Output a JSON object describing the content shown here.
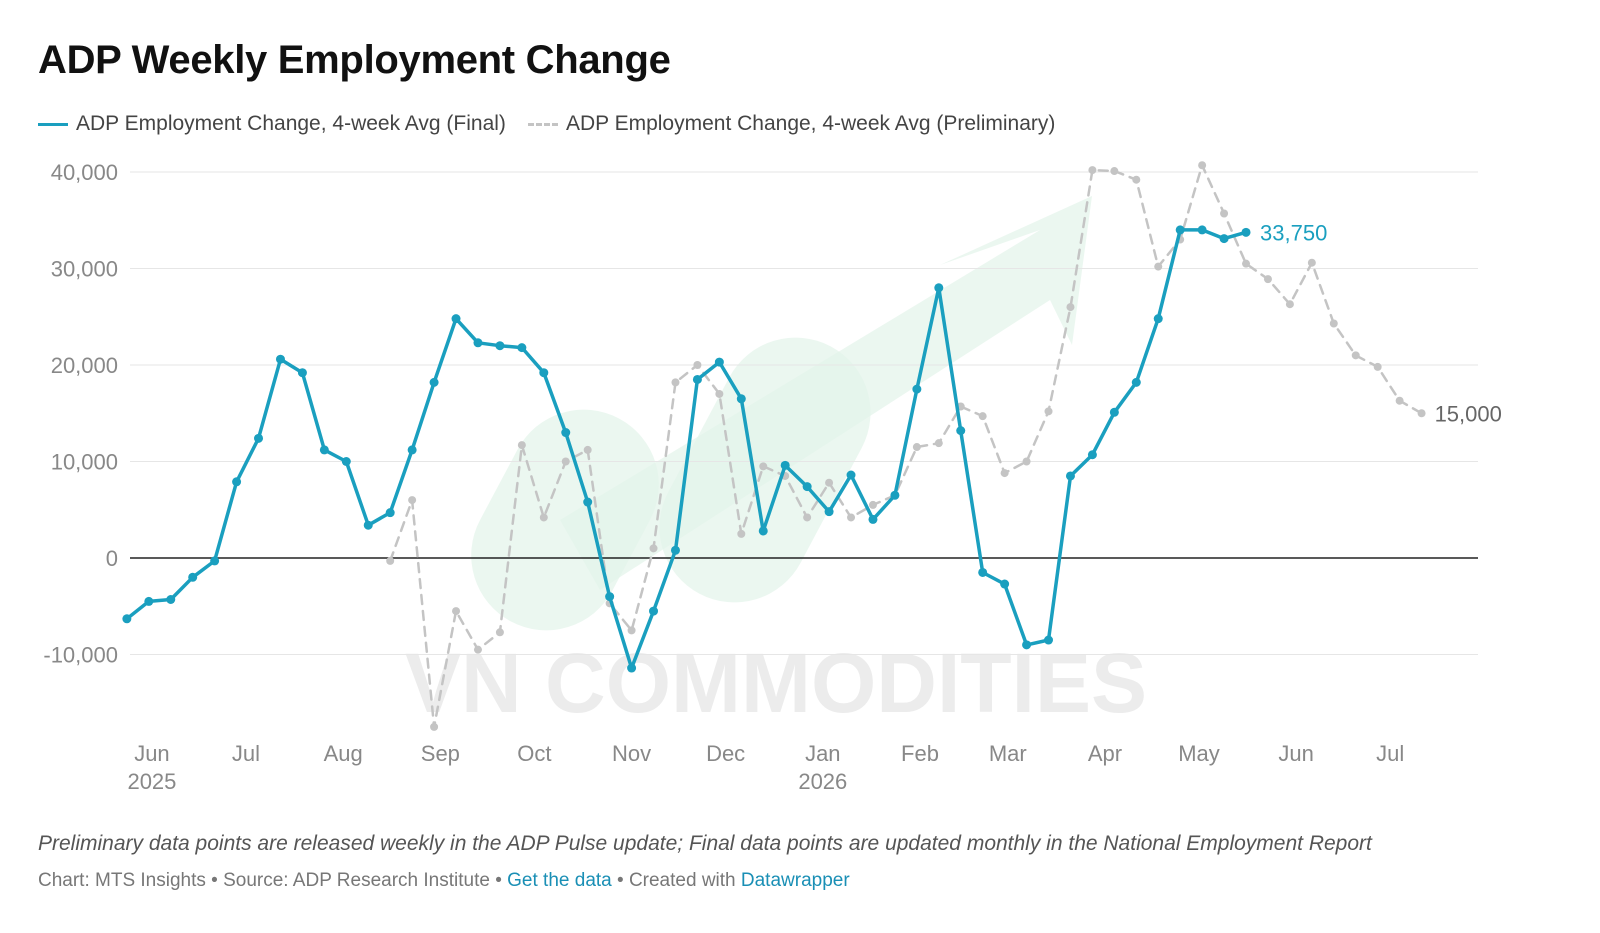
{
  "title": "ADP Weekly Employment Change",
  "legend": {
    "final": "ADP Employment Change, 4-week Avg (Final)",
    "prelim": "ADP Employment Change, 4-week Avg (Preliminary)"
  },
  "footnote": "Preliminary data points are released weekly in the ADP Pulse update; Final data points are updated monthly in the National Employment Report",
  "credits": {
    "prefix": "Chart: MTS Insights • Source: ADP Research Institute • ",
    "get_data": "Get the data",
    "middle": " • Created with ",
    "datawrapper": "Datawrapper"
  },
  "watermark": "VN COMMODITIES",
  "colors": {
    "final": "#1a9fbf",
    "prelim": "#c4c4c4",
    "grid": "#e6e6e6",
    "zero": "#222222",
    "watermark_arrow": "#e3f4ea"
  },
  "chart_data": {
    "type": "line",
    "title": "ADP Weekly Employment Change",
    "ylim": [
      -18000,
      40000
    ],
    "yticks": [
      40000,
      30000,
      20000,
      10000,
      0,
      -10000
    ],
    "ytick_labels": [
      "40,000",
      "30,000",
      "20,000",
      "10,000",
      "0",
      "-10,000"
    ],
    "x_range": [
      "2025-05-25",
      "2026-07-29"
    ],
    "xticks": [
      {
        "date": "2025-06-01",
        "label": "Jun",
        "year": "2025"
      },
      {
        "date": "2025-07-01",
        "label": "Jul",
        "year": ""
      },
      {
        "date": "2025-08-01",
        "label": "Aug",
        "year": ""
      },
      {
        "date": "2025-09-01",
        "label": "Sep",
        "year": ""
      },
      {
        "date": "2025-10-01",
        "label": "Oct",
        "year": ""
      },
      {
        "date": "2025-11-01",
        "label": "Nov",
        "year": ""
      },
      {
        "date": "2025-12-01",
        "label": "Dec",
        "year": ""
      },
      {
        "date": "2026-01-01",
        "label": "Jan",
        "year": "2026"
      },
      {
        "date": "2026-02-01",
        "label": "Feb",
        "year": ""
      },
      {
        "date": "2026-03-01",
        "label": "Mar",
        "year": ""
      },
      {
        "date": "2026-04-01",
        "label": "Apr",
        "year": ""
      },
      {
        "date": "2026-05-01",
        "label": "May",
        "year": ""
      },
      {
        "date": "2026-06-01",
        "label": "Jun",
        "year": ""
      },
      {
        "date": "2026-07-01",
        "label": "Jul",
        "year": ""
      }
    ],
    "grid": true,
    "legend_position": "top-left",
    "series": [
      {
        "name": "ADP Employment Change, 4-week Avg (Final)",
        "style": "solid",
        "end_label": "33,750",
        "points": [
          {
            "x": "2025-05-24",
            "y": -6300
          },
          {
            "x": "2025-05-31",
            "y": -4500
          },
          {
            "x": "2025-06-07",
            "y": -4300
          },
          {
            "x": "2025-06-14",
            "y": -2000
          },
          {
            "x": "2025-06-21",
            "y": -300
          },
          {
            "x": "2025-06-28",
            "y": 7900
          },
          {
            "x": "2025-07-05",
            "y": 12400
          },
          {
            "x": "2025-07-12",
            "y": 20600
          },
          {
            "x": "2025-07-19",
            "y": 19200
          },
          {
            "x": "2025-07-26",
            "y": 11200
          },
          {
            "x": "2025-08-02",
            "y": 10000
          },
          {
            "x": "2025-08-09",
            "y": 3400
          },
          {
            "x": "2025-08-16",
            "y": 4700
          },
          {
            "x": "2025-08-23",
            "y": 11200
          },
          {
            "x": "2025-08-30",
            "y": 18200
          },
          {
            "x": "2025-09-06",
            "y": 24800
          },
          {
            "x": "2025-09-13",
            "y": 22300
          },
          {
            "x": "2025-09-20",
            "y": 22000
          },
          {
            "x": "2025-09-27",
            "y": 21800
          },
          {
            "x": "2025-10-04",
            "y": 19200
          },
          {
            "x": "2025-10-11",
            "y": 13000
          },
          {
            "x": "2025-10-18",
            "y": 5800
          },
          {
            "x": "2025-10-25",
            "y": -4000
          },
          {
            "x": "2025-11-01",
            "y": -11400
          },
          {
            "x": "2025-11-08",
            "y": -5500
          },
          {
            "x": "2025-11-15",
            "y": 800
          },
          {
            "x": "2025-11-22",
            "y": 18500
          },
          {
            "x": "2025-11-29",
            "y": 20300
          },
          {
            "x": "2025-12-06",
            "y": 16500
          },
          {
            "x": "2025-12-13",
            "y": 2800
          },
          {
            "x": "2025-12-20",
            "y": 9600
          },
          {
            "x": "2025-12-27",
            "y": 7400
          },
          {
            "x": "2026-01-03",
            "y": 4800
          },
          {
            "x": "2026-01-10",
            "y": 8600
          },
          {
            "x": "2026-01-17",
            "y": 4000
          },
          {
            "x": "2026-01-24",
            "y": 6500
          },
          {
            "x": "2026-01-31",
            "y": 17500
          },
          {
            "x": "2026-02-07",
            "y": 28000
          },
          {
            "x": "2026-02-14",
            "y": 13200
          },
          {
            "x": "2026-02-21",
            "y": -1500
          },
          {
            "x": "2026-02-28",
            "y": -2700
          },
          {
            "x": "2026-03-07",
            "y": -9000
          },
          {
            "x": "2026-03-14",
            "y": -8500
          },
          {
            "x": "2026-03-21",
            "y": 8500
          },
          {
            "x": "2026-03-28",
            "y": 10700
          },
          {
            "x": "2026-04-04",
            "y": 15100
          },
          {
            "x": "2026-04-11",
            "y": 18200
          },
          {
            "x": "2026-04-18",
            "y": 24800
          },
          {
            "x": "2026-04-25",
            "y": 34000
          },
          {
            "x": "2026-05-02",
            "y": 34000
          },
          {
            "x": "2026-05-09",
            "y": 33100
          },
          {
            "x": "2026-05-16",
            "y": 33750
          }
        ]
      },
      {
        "name": "ADP Employment Change, 4-week Avg (Preliminary)",
        "style": "dashed",
        "end_label": "15,000",
        "points": [
          {
            "x": "2025-08-16",
            "y": -300
          },
          {
            "x": "2025-08-23",
            "y": 6000
          },
          {
            "x": "2025-08-30",
            "y": -17500
          },
          {
            "x": "2025-09-06",
            "y": -5500
          },
          {
            "x": "2025-09-13",
            "y": -9500
          },
          {
            "x": "2025-09-20",
            "y": -7700
          },
          {
            "x": "2025-09-27",
            "y": 11700
          },
          {
            "x": "2025-10-04",
            "y": 4200
          },
          {
            "x": "2025-10-11",
            "y": 10000
          },
          {
            "x": "2025-10-18",
            "y": 11200
          },
          {
            "x": "2025-10-25",
            "y": -4700
          },
          {
            "x": "2025-11-01",
            "y": -7500
          },
          {
            "x": "2025-11-08",
            "y": 1000
          },
          {
            "x": "2025-11-15",
            "y": 18200
          },
          {
            "x": "2025-11-22",
            "y": 20000
          },
          {
            "x": "2025-11-29",
            "y": 17000
          },
          {
            "x": "2025-12-06",
            "y": 2500
          },
          {
            "x": "2025-12-13",
            "y": 9500
          },
          {
            "x": "2025-12-20",
            "y": 8500
          },
          {
            "x": "2025-12-27",
            "y": 4200
          },
          {
            "x": "2026-01-03",
            "y": 7800
          },
          {
            "x": "2026-01-10",
            "y": 4200
          },
          {
            "x": "2026-01-17",
            "y": 5500
          },
          {
            "x": "2026-01-24",
            "y": 6500
          },
          {
            "x": "2026-01-31",
            "y": 11500
          },
          {
            "x": "2026-02-07",
            "y": 11900
          },
          {
            "x": "2026-02-14",
            "y": 15700
          },
          {
            "x": "2026-02-21",
            "y": 14700
          },
          {
            "x": "2026-02-28",
            "y": 8800
          },
          {
            "x": "2026-03-07",
            "y": 10000
          },
          {
            "x": "2026-03-14",
            "y": 15200
          },
          {
            "x": "2026-03-21",
            "y": 26000
          },
          {
            "x": "2026-03-28",
            "y": 40200
          },
          {
            "x": "2026-04-04",
            "y": 40100
          },
          {
            "x": "2026-04-11",
            "y": 39200
          },
          {
            "x": "2026-04-18",
            "y": 30200
          },
          {
            "x": "2026-04-25",
            "y": 33000
          },
          {
            "x": "2026-05-02",
            "y": 40700
          },
          {
            "x": "2026-05-09",
            "y": 35700
          },
          {
            "x": "2026-05-16",
            "y": 30500
          },
          {
            "x": "2026-05-23",
            "y": 28900
          },
          {
            "x": "2026-05-30",
            "y": 26300
          },
          {
            "x": "2026-06-06",
            "y": 30600
          },
          {
            "x": "2026-06-13",
            "y": 24300
          },
          {
            "x": "2026-06-20",
            "y": 21000
          },
          {
            "x": "2026-06-27",
            "y": 19800
          },
          {
            "x": "2026-07-04",
            "y": 16300
          },
          {
            "x": "2026-07-11",
            "y": 15000
          }
        ]
      }
    ]
  }
}
